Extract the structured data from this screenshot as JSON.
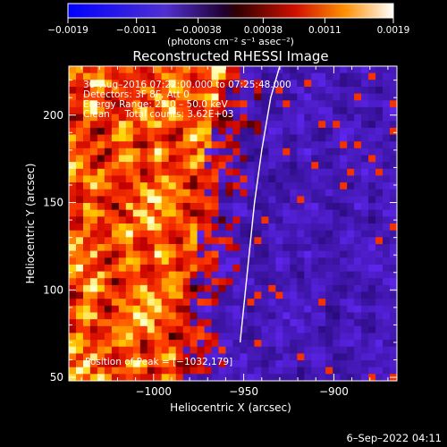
{
  "chart_data": {
    "type": "heatmap",
    "title": "Reconstructed RHESSI Image",
    "xlabel": "Heliocentric X (arcsec)",
    "ylabel": "Heliocentric Y (arcsec)",
    "xlim": [
      -1047,
      -865
    ],
    "ylim": [
      48,
      228
    ],
    "x_ticks": [
      -1000,
      -950,
      -900
    ],
    "y_ticks": [
      50,
      100,
      150,
      200
    ],
    "x_tick_labels": [
      "−1000",
      "−950",
      "−900"
    ],
    "y_tick_labels": [
      "50",
      "100",
      "150",
      "200"
    ],
    "colorbar": {
      "range": [
        -0.0019,
        0.0019
      ],
      "ticks": [
        -0.0019,
        -0.0011,
        -0.00038,
        0.00038,
        0.0011,
        0.0019
      ],
      "tick_labels": [
        "−0.0019",
        "−0.0011",
        "−0.00038",
        "0.00038",
        "0.0011",
        "0.0019"
      ],
      "unit_label": "(photons cm⁻² s⁻¹ asec⁻²)"
    },
    "info_lines": [
      "30–Aug–2016 07:22:00.000 to 07:25:48.000",
      "Detectors: 3F 8F, Att 0",
      "Energy Range: 25.0 – 50.0 keV",
      "Clean     Total counts: 3.62E+03"
    ],
    "peak_label": "Position of Peak = [−1032,179]",
    "limb": {
      "points": [
        [
          -930,
          228
        ],
        [
          -935,
          210
        ],
        [
          -940,
          180
        ],
        [
          -944,
          150
        ],
        [
          -947,
          120
        ],
        [
          -950,
          90
        ],
        [
          -952,
          70
        ]
      ]
    }
  },
  "footer": {
    "timestamp": "6–Sep–2022 04:11"
  }
}
